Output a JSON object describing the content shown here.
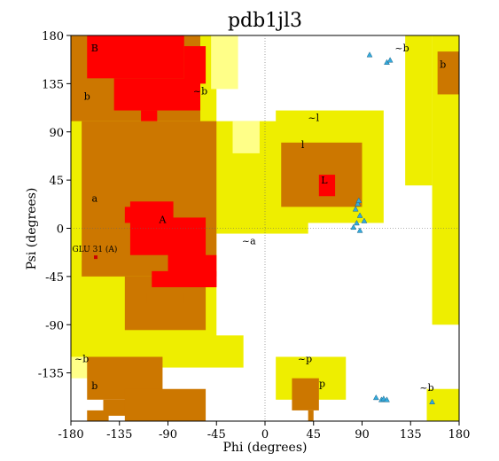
{
  "chart_data": {
    "type": "scatter",
    "title": "pdb1jl3",
    "xlabel": "Phi (degrees)",
    "ylabel": "Psi (degrees)",
    "xlim": [
      -180,
      180
    ],
    "ylim": [
      -180,
      180
    ],
    "xticks": [
      -180,
      -135,
      -90,
      -45,
      0,
      45,
      90,
      135,
      180
    ],
    "yticks": [
      180,
      135,
      90,
      45,
      0,
      -45,
      -90,
      -135
    ],
    "grid": false,
    "colors": {
      "core": "#ff0000",
      "allowed": "#cc7700",
      "generous": "#eeee00",
      "generous_outer": "#ffff88",
      "background": "#ffffcc",
      "residue": "#33aadd",
      "outlier": "#cc0000"
    },
    "region_labels": [
      {
        "text": "B",
        "phi": -158,
        "psi": 165
      },
      {
        "text": "b",
        "phi": -165,
        "psi": 120
      },
      {
        "text": "~b",
        "phi": -60,
        "psi": 125
      },
      {
        "text": "~b",
        "phi": 127,
        "psi": 165
      },
      {
        "text": "b",
        "phi": 165,
        "psi": 150
      },
      {
        "text": "~l",
        "phi": 45,
        "psi": 100
      },
      {
        "text": "l",
        "phi": 35,
        "psi": 75
      },
      {
        "text": "L",
        "phi": 55,
        "psi": 42
      },
      {
        "text": "a",
        "phi": -158,
        "psi": 25
      },
      {
        "text": "A",
        "phi": -95,
        "psi": 5
      },
      {
        "text": "~a",
        "phi": -15,
        "psi": -15
      },
      {
        "text": "~b",
        "phi": -170,
        "psi": -125
      },
      {
        "text": "b",
        "phi": -158,
        "psi": -150
      },
      {
        "text": "~p",
        "phi": 37,
        "psi": -125
      },
      {
        "text": "p",
        "phi": 53,
        "psi": -148
      },
      {
        "text": "~b",
        "phi": 150,
        "psi": -152
      }
    ],
    "outlier_labels": [
      {
        "text": "GLU 31 (A)",
        "phi": -157,
        "psi": -27
      }
    ],
    "series": [
      {
        "marker": "square",
        "points": []
      },
      {
        "marker": "triangle",
        "points": [
          [
            97,
            162
          ],
          [
            113,
            155
          ],
          [
            116,
            157
          ],
          [
            86,
            23
          ],
          [
            84,
            18
          ],
          [
            88,
            12
          ],
          [
            92,
            7
          ],
          [
            85,
            5
          ],
          [
            82,
            1
          ],
          [
            88,
            -2
          ],
          [
            87,
            26
          ],
          [
            103,
            -158
          ],
          [
            108,
            -160
          ],
          [
            110,
            -159
          ],
          [
            155,
            -162
          ],
          [
            113,
            -160
          ]
        ]
      }
    ]
  }
}
